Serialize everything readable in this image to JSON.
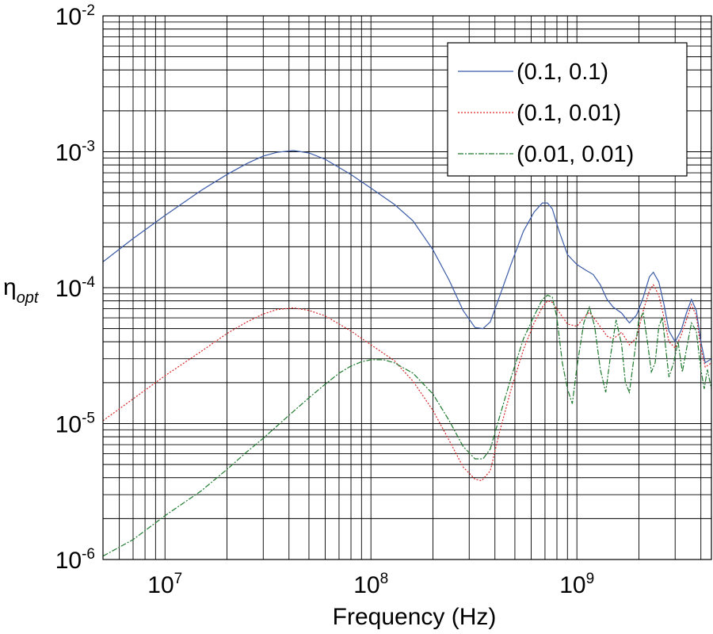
{
  "chart_data": {
    "type": "line",
    "xscale": "log",
    "yscale": "log",
    "xlabel": "Frequency (Hz)",
    "ylabel": "η",
    "ylabel_sub": "opt",
    "xlim": [
      5000000,
      4500000000
    ],
    "ylim": [
      1e-06,
      0.01
    ],
    "grid": true,
    "legend_position": "top-right",
    "x_ticks": [
      {
        "value": 10000000,
        "base": "10",
        "exp": "7"
      },
      {
        "value": 100000000,
        "base": "10",
        "exp": "8"
      },
      {
        "value": 1000000000,
        "base": "10",
        "exp": "9"
      }
    ],
    "y_ticks": [
      {
        "value": 1e-06,
        "base": "10",
        "exp": "-6"
      },
      {
        "value": 1e-05,
        "base": "10",
        "exp": "-5"
      },
      {
        "value": 0.0001,
        "base": "10",
        "exp": "-4"
      },
      {
        "value": 0.001,
        "base": "10",
        "exp": "-3"
      },
      {
        "value": 0.01,
        "base": "10",
        "exp": "-2"
      }
    ],
    "series": [
      {
        "name": "(0.1, 0.1)",
        "color": "#3b5ba8",
        "dash": "solid",
        "points": [
          [
            5000000,
            0.000155
          ],
          [
            7000000,
            0.00023
          ],
          [
            10000000,
            0.00034
          ],
          [
            15000000,
            0.00052
          ],
          [
            20000000,
            0.00068
          ],
          [
            25000000,
            0.00082
          ],
          [
            30000000,
            0.00093
          ],
          [
            35000000,
            0.00099
          ],
          [
            42000000,
            0.00102
          ],
          [
            50000000,
            0.00098
          ],
          [
            60000000,
            0.00088
          ],
          [
            80000000,
            0.00068
          ],
          [
            100000000,
            0.00054
          ],
          [
            130000000,
            0.00041
          ],
          [
            160000000,
            0.00031
          ],
          [
            200000000,
            0.00019
          ],
          [
            240000000,
            0.000113
          ],
          [
            280000000,
            6.8e-05
          ],
          [
            320000000,
            5.1e-05
          ],
          [
            350000000,
            5e-05
          ],
          [
            380000000,
            5.6e-05
          ],
          [
            420000000,
            8.5e-05
          ],
          [
            480000000,
            0.00015
          ],
          [
            550000000,
            0.00026
          ],
          [
            620000000,
            0.00036
          ],
          [
            680000000,
            0.00042
          ],
          [
            720000000,
            0.00042
          ],
          [
            760000000,
            0.00038
          ],
          [
            820000000,
            0.00026
          ],
          [
            900000000,
            0.000175
          ],
          [
            1000000000,
            0.000148
          ],
          [
            1100000000,
            0.000135
          ],
          [
            1200000000,
            0.000125
          ],
          [
            1300000000,
            0.000105
          ],
          [
            1400000000,
            8.2e-05
          ],
          [
            1500000000,
            7.2e-05
          ],
          [
            1650000000,
            6.5e-05
          ],
          [
            1800000000,
            5.5e-05
          ],
          [
            1950000000,
            6.3e-05
          ],
          [
            2100000000,
            8.5e-05
          ],
          [
            2250000000,
            0.00012
          ],
          [
            2350000000,
            0.00013
          ],
          [
            2500000000,
            0.00011
          ],
          [
            2650000000,
            7.5e-05
          ],
          [
            2800000000,
            4.8e-05
          ],
          [
            3000000000,
            4e-05
          ],
          [
            3200000000,
            4.8e-05
          ],
          [
            3400000000,
            6.5e-05
          ],
          [
            3600000000,
            8.2e-05
          ],
          [
            3800000000,
            6.8e-05
          ],
          [
            4000000000,
            4e-05
          ],
          [
            4200000000,
            2.8e-05
          ],
          [
            4500000000,
            3e-05
          ]
        ]
      },
      {
        "name": "(0.1, 0.01)",
        "color": "#d62728",
        "dash": "2,2",
        "points": [
          [
            5000000,
            1.05e-05
          ],
          [
            7000000,
            1.52e-05
          ],
          [
            10000000,
            2.25e-05
          ],
          [
            15000000,
            3.4e-05
          ],
          [
            20000000,
            4.6e-05
          ],
          [
            25000000,
            5.6e-05
          ],
          [
            30000000,
            6.4e-05
          ],
          [
            35000000,
            6.9e-05
          ],
          [
            42000000,
            7.1e-05
          ],
          [
            50000000,
            6.8e-05
          ],
          [
            60000000,
            6.2e-05
          ],
          [
            80000000,
            4.8e-05
          ],
          [
            100000000,
            3.8e-05
          ],
          [
            130000000,
            2.9e-05
          ],
          [
            160000000,
            2.05e-05
          ],
          [
            200000000,
            1.25e-05
          ],
          [
            240000000,
            7.5e-06
          ],
          [
            280000000,
            4.8e-06
          ],
          [
            320000000,
            3.9e-06
          ],
          [
            345000000,
            3.8e-06
          ],
          [
            380000000,
            4.5e-06
          ],
          [
            420000000,
            8.5e-06
          ],
          [
            480000000,
            1.8e-05
          ],
          [
            550000000,
            3.5e-05
          ],
          [
            620000000,
            5.5e-05
          ],
          [
            680000000,
            7.2e-05
          ],
          [
            720000000,
            8e-05
          ],
          [
            760000000,
            7.8e-05
          ],
          [
            820000000,
            6.6e-05
          ],
          [
            900000000,
            5.4e-05
          ],
          [
            1000000000,
            5.2e-05
          ],
          [
            1100000000,
            6.2e-05
          ],
          [
            1150000000,
            6.6e-05
          ],
          [
            1250000000,
            5.6e-05
          ],
          [
            1400000000,
            4.4e-05
          ],
          [
            1500000000,
            4.2e-05
          ],
          [
            1650000000,
            4.7e-05
          ],
          [
            1800000000,
            3.8e-05
          ],
          [
            1950000000,
            4.3e-05
          ],
          [
            2100000000,
            6.8e-05
          ],
          [
            2250000000,
            9.5e-05
          ],
          [
            2350000000,
            0.000105
          ],
          [
            2500000000,
            8.8e-05
          ],
          [
            2650000000,
            6e-05
          ],
          [
            2800000000,
            4e-05
          ],
          [
            3000000000,
            3.6e-05
          ],
          [
            3200000000,
            4.4e-05
          ],
          [
            3400000000,
            5.8e-05
          ],
          [
            3600000000,
            7.5e-05
          ],
          [
            3800000000,
            6.2e-05
          ],
          [
            4000000000,
            3.6e-05
          ],
          [
            4200000000,
            2.6e-05
          ],
          [
            4500000000,
            2.8e-05
          ]
        ]
      },
      {
        "name": "(0.01, 0.01)",
        "color": "#1f7a2e",
        "dash": "7,2,2,2",
        "points": [
          [
            5000000,
            1.06e-06
          ],
          [
            7000000,
            1.4e-06
          ],
          [
            10000000,
            2.1e-06
          ],
          [
            15000000,
            3.2e-06
          ],
          [
            20000000,
            4.6e-06
          ],
          [
            25000000,
            6.2e-06
          ],
          [
            30000000,
            7.8e-06
          ],
          [
            40000000,
            1.15e-05
          ],
          [
            50000000,
            1.55e-05
          ],
          [
            60000000,
            1.95e-05
          ],
          [
            70000000,
            2.35e-05
          ],
          [
            80000000,
            2.65e-05
          ],
          [
            90000000,
            2.85e-05
          ],
          [
            100000000,
            2.95e-05
          ],
          [
            115000000,
            2.95e-05
          ],
          [
            130000000,
            2.8e-05
          ],
          [
            160000000,
            2.35e-05
          ],
          [
            200000000,
            1.65e-05
          ],
          [
            240000000,
            1.05e-05
          ],
          [
            280000000,
            6.8e-06
          ],
          [
            320000000,
            5.5e-06
          ],
          [
            350000000,
            5.5e-06
          ],
          [
            380000000,
            6.5e-06
          ],
          [
            420000000,
            1.1e-05
          ],
          [
            480000000,
            2.2e-05
          ],
          [
            550000000,
            4.2e-05
          ],
          [
            620000000,
            6.2e-05
          ],
          [
            680000000,
            8.2e-05
          ],
          [
            720000000,
            8.8e-05
          ],
          [
            760000000,
            8.5e-05
          ],
          [
            800000000,
            6e-05
          ],
          [
            850000000,
            2.8e-05
          ],
          [
            900000000,
            1.8e-05
          ],
          [
            950000000,
            1.4e-05
          ],
          [
            1000000000,
            2.6e-05
          ],
          [
            1080000000,
            5.5e-05
          ],
          [
            1150000000,
            7.2e-05
          ],
          [
            1220000000,
            5.2e-05
          ],
          [
            1300000000,
            2.5e-05
          ],
          [
            1380000000,
            1.7e-05
          ],
          [
            1450000000,
            3e-05
          ],
          [
            1550000000,
            5.8e-05
          ],
          [
            1650000000,
            3.8e-05
          ],
          [
            1720000000,
            2e-05
          ],
          [
            1800000000,
            1.7e-05
          ],
          [
            1900000000,
            3.2e-05
          ],
          [
            2000000000,
            5.8e-05
          ],
          [
            2100000000,
            6.5e-05
          ],
          [
            2200000000,
            4e-05
          ],
          [
            2300000000,
            2.4e-05
          ],
          [
            2400000000,
            2.8e-05
          ],
          [
            2500000000,
            5.2e-05
          ],
          [
            2600000000,
            6e-05
          ],
          [
            2700000000,
            3.6e-05
          ],
          [
            2800000000,
            2.2e-05
          ],
          [
            2950000000,
            2.8e-05
          ],
          [
            3100000000,
            4e-05
          ],
          [
            3250000000,
            2.4e-05
          ],
          [
            3400000000,
            3.5e-05
          ],
          [
            3600000000,
            5.5e-05
          ],
          [
            3800000000,
            4.8e-05
          ],
          [
            4000000000,
            2.5e-05
          ],
          [
            4150000000,
            1.8e-05
          ],
          [
            4300000000,
            2.5e-05
          ],
          [
            4500000000,
            1.8e-05
          ]
        ]
      }
    ]
  }
}
